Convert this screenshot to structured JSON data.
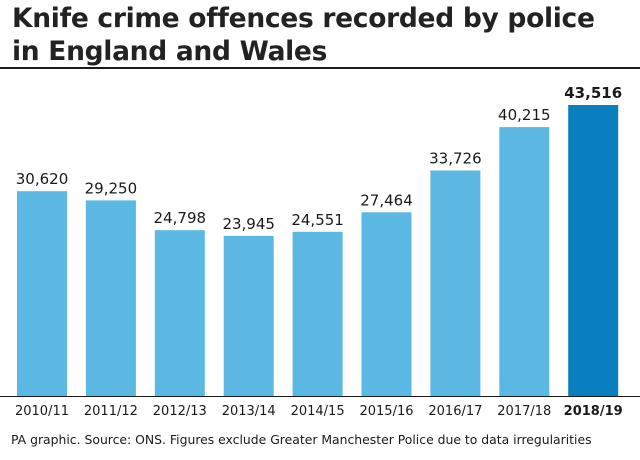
{
  "title": "Knife crime offences recorded by police in England and Wales",
  "source": "PA graphic. Source: ONS. Figures exclude Greater Manchester Police due to data irregularities",
  "colors": {
    "bar": "#5bb8e3",
    "highlight_bar": "#0a7fc0",
    "text": "#1a1a1a",
    "rule": "#1a1a1a"
  },
  "chart_data": {
    "type": "bar",
    "title": "Knife crime offences recorded by police in England and Wales",
    "xlabel": "",
    "ylabel": "",
    "grid": false,
    "categories": [
      "2010/11",
      "2011/12",
      "2012/13",
      "2013/14",
      "2014/15",
      "2015/16",
      "2016/17",
      "2017/18",
      "2018/19"
    ],
    "values": [
      30620,
      29250,
      24798,
      23945,
      24551,
      27464,
      33726,
      40215,
      43516
    ],
    "data_labels": [
      "30,620",
      "29,250",
      "24,798",
      "23,945",
      "24,551",
      "27,464",
      "33,726",
      "40,215",
      "43,516"
    ],
    "highlighted_category": "2018/19",
    "ylim": [
      0,
      43516
    ]
  }
}
